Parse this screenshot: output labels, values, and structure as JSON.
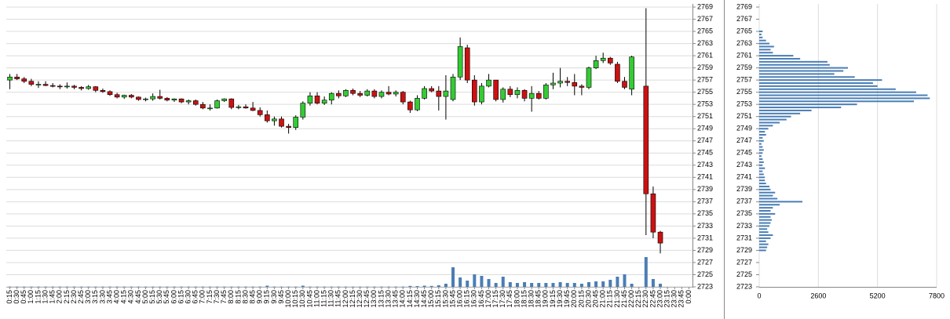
{
  "chart_data": [
    {
      "type": "candlestick",
      "categories": [
        "0:15",
        "0:30",
        "0:45",
        "1:00",
        "1:15",
        "1:30",
        "1:45",
        "2:00",
        "2:15",
        "2:30",
        "2:45",
        "3:00",
        "3:15",
        "3:30",
        "3:45",
        "4:00",
        "4:15",
        "4:30",
        "4:45",
        "5:00",
        "5:15",
        "5:30",
        "5:45",
        "6:00",
        "6:15",
        "6:30",
        "6:45",
        "7:00",
        "7:15",
        "7:30",
        "7:45",
        "8:00",
        "8:15",
        "8:30",
        "8:45",
        "9:00",
        "9:15",
        "9:30",
        "9:45",
        "10:00",
        "10:15",
        "10:30",
        "10:45",
        "11:00",
        "11:15",
        "11:30",
        "11:45",
        "12:00",
        "12:15",
        "12:30",
        "12:45",
        "13:00",
        "13:15",
        "13:30",
        "13:45",
        "14:00",
        "14:15",
        "14:30",
        "14:45",
        "15:00",
        "15:15",
        "15:30",
        "15:45",
        "16:00",
        "16:15",
        "16:30",
        "16:45",
        "17:00",
        "17:15",
        "17:30",
        "17:45",
        "18:00",
        "18:15",
        "18:30",
        "18:45",
        "19:00",
        "19:15",
        "19:30",
        "19:45",
        "20:00",
        "20:15",
        "20:30",
        "20:45",
        "21:00",
        "21:15",
        "21:30",
        "21:45",
        "22:00",
        "22:15",
        "22:30",
        "22:45",
        "23:00",
        "23:15",
        "23:30",
        "23:45",
        "0:00"
      ],
      "open": [
        2757,
        2757.5,
        2757.2,
        2756.8,
        2756.3,
        2756.3,
        2756.1,
        2756,
        2755.9,
        2756,
        2755.8,
        2755.6,
        2755.9,
        2755.3,
        2755.1,
        2754.6,
        2754.2,
        2754.5,
        2754.2,
        2753.8,
        2753.9,
        2754.3,
        2754,
        2753.7,
        2753.9,
        2753.4,
        2753.6,
        2753,
        2752.4,
        2752.4,
        2753.6,
        2753.9,
        2752.5,
        2752.6,
        2752.4,
        2752,
        2751.3,
        2750.3,
        2750.6,
        2749.4,
        2749.2,
        2750.9,
        2753.2,
        2754.4,
        2753.2,
        2753.7,
        2754.8,
        2754.4,
        2755.3,
        2754.8,
        2754.5,
        2755.2,
        2754.3,
        2755,
        2754.7,
        2755,
        2753.4,
        2752.1,
        2754,
        2755.6,
        2755.2,
        2754.3,
        2753.8,
        2757.5,
        2762.3,
        2757,
        2753.4,
        2756,
        2757,
        2753.8,
        2755.5,
        2754.6,
        2755.3,
        2754,
        2754.8,
        2754,
        2756.2,
        2756.5,
        2756.8,
        2756.6,
        2756,
        2755.8,
        2759,
        2760.2,
        2760.6,
        2759.6,
        2756.8,
        2755.5,
        null,
        2756,
        2738.3,
        2732,
        null,
        null,
        null,
        null
      ],
      "high": [
        2758,
        2758,
        2757.5,
        2757.2,
        2756.8,
        2756.8,
        2756.5,
        2756.3,
        2756.6,
        2756.2,
        2756,
        2756.2,
        2756,
        2755.6,
        2755.3,
        2754.9,
        2754.6,
        2754.7,
        2754.3,
        2754.1,
        2754.8,
        2755.4,
        2754.2,
        2754,
        2754,
        2753.8,
        2753.8,
        2753.4,
        2753,
        2753.8,
        2754,
        2754,
        2752.9,
        2753,
        2753.4,
        2752.5,
        2752,
        2751,
        2751,
        2749.8,
        2751.2,
        2753.5,
        2755,
        2755,
        2754.3,
        2755,
        2755.3,
        2755.5,
        2755.6,
        2755.2,
        2755.5,
        2755.5,
        2755.3,
        2756,
        2755.3,
        2755.2,
        2753.6,
        2754.5,
        2756,
        2756,
        2756,
        2757.8,
        2758,
        2764,
        2762.8,
        2757.8,
        2756.5,
        2758,
        2757,
        2755.8,
        2756,
        2755.8,
        2755.5,
        2756,
        2755.2,
        2756.5,
        2758.2,
        2759,
        2757.5,
        2758,
        2756.3,
        2759.2,
        2761,
        2761.5,
        2760.8,
        2760,
        2757.5,
        2761,
        null,
        2768.8,
        2739.5,
        2732.2,
        null,
        null,
        null,
        null
      ],
      "low": [
        2755.5,
        2757,
        2756.5,
        2756,
        2755.7,
        2756,
        2755.8,
        2755.5,
        2755.6,
        2755.5,
        2755.3,
        2755.4,
        2755,
        2754.9,
        2754.4,
        2754,
        2753.9,
        2754,
        2753.6,
        2753.5,
        2753.6,
        2753.8,
        2753.5,
        2753.4,
        2753.2,
        2753,
        2752.8,
        2752.2,
        2752,
        2752.3,
        2753.4,
        2752.2,
        2752.2,
        2752.3,
        2751.9,
        2751,
        2750,
        2749.5,
        2749.2,
        2748.2,
        2748.8,
        2750.5,
        2752.8,
        2753,
        2752.9,
        2753,
        2754,
        2754.2,
        2754.5,
        2754.2,
        2754.3,
        2754,
        2754,
        2754.5,
        2754.3,
        2753,
        2751.6,
        2751.9,
        2753.8,
        2755,
        2752,
        2750.5,
        2753.5,
        2757,
        2756.5,
        2752.8,
        2753,
        2755.8,
        2753.5,
        2753.3,
        2754.2,
        2754,
        2753.5,
        2751.8,
        2753.8,
        2753.8,
        2755.5,
        2755.8,
        2756,
        2754.5,
        2754.5,
        2755.5,
        2758.8,
        2759.8,
        2759.5,
        2756.5,
        2755.5,
        2754.5,
        null,
        2731.5,
        2731,
        2728.5,
        null,
        null,
        null,
        null
      ],
      "close": [
        2757.5,
        2757.2,
        2756.8,
        2756.3,
        2756.3,
        2756.1,
        2756,
        2755.9,
        2756,
        2755.8,
        2755.6,
        2755.9,
        2755.3,
        2755.1,
        2754.6,
        2754.2,
        2754.5,
        2754.2,
        2753.8,
        2753.9,
        2754.3,
        2754,
        2753.7,
        2753.9,
        2753.4,
        2753.6,
        2753,
        2752.4,
        2752.4,
        2753.6,
        2753.9,
        2752.5,
        2752.6,
        2752.4,
        2752,
        2751.3,
        2750.3,
        2750.6,
        2749.4,
        2749.2,
        2750.9,
        2753.2,
        2754.4,
        2753.2,
        2753.7,
        2754.8,
        2754.4,
        2755.3,
        2754.8,
        2754.5,
        2755.2,
        2754.3,
        2755,
        2754.7,
        2755,
        2753.4,
        2752.1,
        2754,
        2755.6,
        2755.2,
        2754.3,
        2755.2,
        2757.5,
        2762.5,
        2757,
        2753.4,
        2756,
        2757,
        2753.8,
        2755.5,
        2754.6,
        2755.3,
        2754,
        2754.8,
        2754,
        2756.2,
        2756.5,
        2756.8,
        2756.6,
        2756,
        2755.8,
        2759,
        2760.2,
        2760.6,
        2759.8,
        2756.8,
        2755.8,
        2760.8,
        null,
        2738.3,
        2732,
        2730.2,
        null,
        null,
        null,
        null
      ],
      "volume": [
        0.3,
        0.3,
        0.3,
        0.3,
        0.3,
        0.3,
        0.3,
        0.3,
        0.3,
        0.3,
        0.3,
        0.3,
        0.3,
        0.3,
        0.3,
        0.3,
        0.3,
        0.3,
        0.3,
        0.3,
        0.3,
        0.3,
        0.3,
        0.3,
        0.3,
        0.3,
        0.3,
        0.3,
        0.3,
        0.3,
        0.3,
        0.3,
        0.3,
        0.3,
        0.3,
        0.3,
        1.5,
        0.3,
        0.3,
        0.3,
        0.3,
        1.5,
        0.3,
        0.3,
        0.3,
        0.3,
        0.3,
        0.3,
        0.3,
        0.3,
        0.3,
        0.3,
        0.3,
        0.3,
        0.3,
        0.3,
        1.2,
        1,
        1.5,
        1.2,
        2,
        4,
        25,
        12,
        8,
        16,
        14,
        10,
        5,
        13,
        6,
        5,
        6,
        5,
        5,
        5,
        5,
        6,
        5,
        5,
        4,
        6,
        7,
        7,
        9,
        13,
        16,
        4,
        null,
        38,
        10,
        4,
        null,
        null,
        null,
        null
      ],
      "up_color": "#33cc33",
      "down_color": "#cc1111",
      "volume_color": "#4a7eb5",
      "ylim": [
        2723,
        2769
      ],
      "yticks": [
        2723,
        2725,
        2727,
        2729,
        2731,
        2733,
        2735,
        2737,
        2739,
        2741,
        2743,
        2745,
        2747,
        2749,
        2751,
        2753,
        2755,
        2757,
        2759,
        2761,
        2763,
        2765,
        2767,
        2769
      ],
      "volume_ylim": [
        0,
        50
      ],
      "grid": true
    },
    {
      "type": "hbar",
      "categories": [
        2729,
        2729.5,
        2730,
        2730.5,
        2731,
        2731.5,
        2732,
        2732.5,
        2733,
        2733.5,
        2734,
        2734.5,
        2735,
        2735.5,
        2736,
        2736.5,
        2737,
        2737.5,
        2738,
        2738.5,
        2739,
        2739.5,
        2740,
        2740.5,
        2741,
        2741.5,
        2742,
        2742.5,
        2743,
        2743.5,
        2744,
        2744.5,
        2745,
        2745.5,
        2746,
        2746.5,
        2747,
        2747.5,
        2748,
        2748.5,
        2749,
        2749.5,
        2750,
        2750.5,
        2751,
        2751.5,
        2752,
        2752.5,
        2753,
        2753.5,
        2754,
        2754.5,
        2755,
        2755.5,
        2756,
        2756.5,
        2757,
        2757.5,
        2758,
        2758.5,
        2759,
        2759.5,
        2760,
        2760.5,
        2761,
        2761.5,
        2762,
        2762.5,
        2763,
        2763.5,
        2764,
        2764.5,
        2765
      ],
      "values": [
        300,
        350,
        400,
        300,
        500,
        600,
        400,
        350,
        450,
        500,
        550,
        500,
        700,
        500,
        600,
        900,
        1900,
        800,
        600,
        700,
        500,
        450,
        300,
        250,
        250,
        200,
        150,
        250,
        150,
        200,
        150,
        100,
        150,
        200,
        150,
        100,
        200,
        150,
        300,
        250,
        400,
        600,
        900,
        1200,
        1400,
        1800,
        2300,
        3600,
        4300,
        6800,
        7500,
        7400,
        6900,
        6000,
        5200,
        5000,
        5400,
        4200,
        3300,
        3700,
        3900,
        3100,
        3000,
        1800,
        1500,
        600,
        500,
        650,
        450,
        300,
        150,
        100,
        150
      ],
      "color": "#4a7eb5",
      "xlim": [
        0,
        7800
      ],
      "xticks": [
        0,
        2600,
        5200,
        7800
      ],
      "ylim": [
        2723,
        2769
      ],
      "yticks": [
        2723,
        2725,
        2727,
        2729,
        2731,
        2733,
        2735,
        2737,
        2739,
        2741,
        2743,
        2745,
        2747,
        2749,
        2751,
        2753,
        2755,
        2757,
        2759,
        2761,
        2763,
        2765,
        2767,
        2769
      ],
      "grid": true
    }
  ]
}
